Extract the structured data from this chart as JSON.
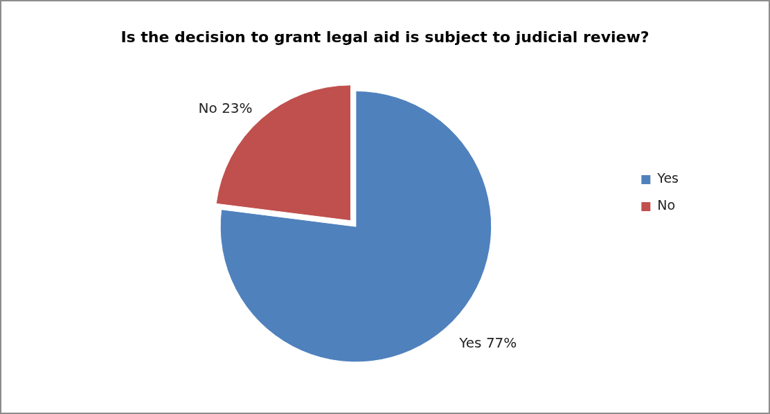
{
  "chart_data": {
    "type": "pie",
    "title": "Is the decision to grant legal aid is subject to judicial review?",
    "categories": [
      "Yes",
      "No"
    ],
    "values": [
      77,
      23
    ],
    "colors": [
      "#4f81bd",
      "#c0504d"
    ],
    "value_labels": [
      "Yes 77%",
      "No 23%"
    ],
    "legend": "right"
  }
}
